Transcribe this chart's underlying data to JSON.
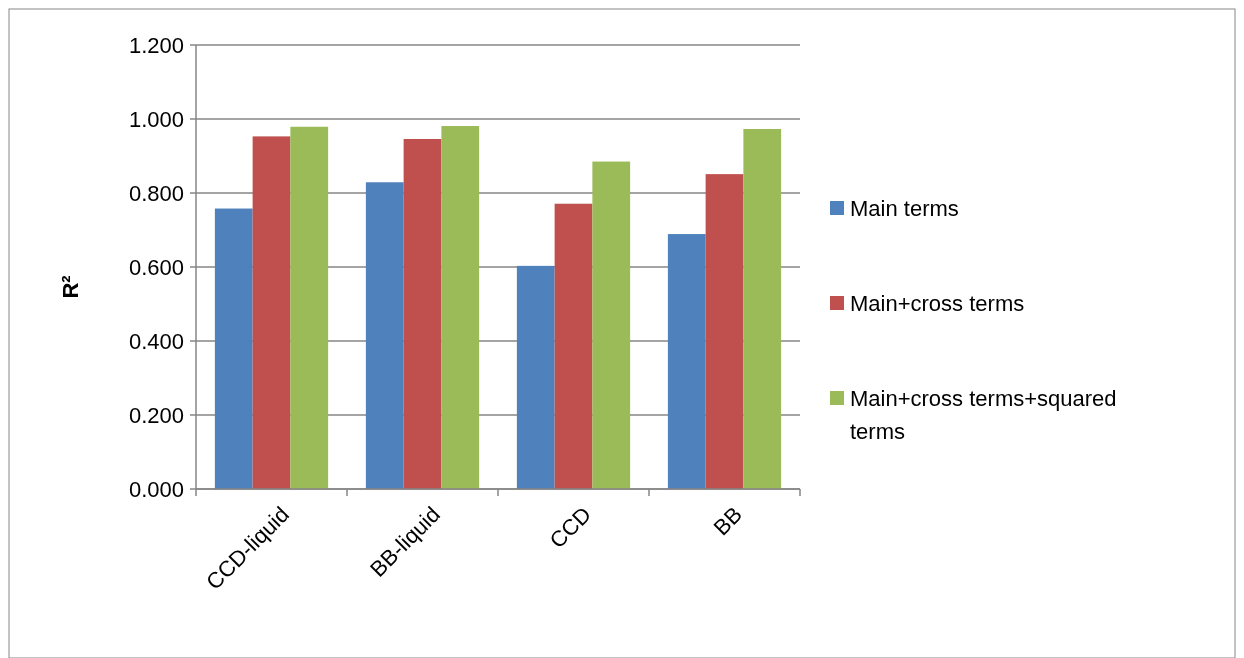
{
  "chart_data": {
    "type": "bar",
    "ylabel": "R²",
    "categories": [
      "CCD-liquid",
      "BB-liquid",
      "CCD",
      "BB"
    ],
    "series": [
      {
        "name": "Main terms",
        "color": "#4f81bd",
        "values": [
          0.758,
          0.829,
          0.603,
          0.689
        ]
      },
      {
        "name": "Main+cross terms",
        "color": "#c0504d",
        "values": [
          0.953,
          0.946,
          0.771,
          0.851
        ]
      },
      {
        "name": "Main+cross terms+squared terms",
        "color": "#9bbb59",
        "values": [
          0.979,
          0.981,
          0.885,
          0.973
        ]
      }
    ],
    "ylim": [
      0,
      1.2
    ],
    "yticks": [
      {
        "value": 0,
        "label": "0.000"
      },
      {
        "value": 0.2,
        "label": "0.200"
      },
      {
        "value": 0.4,
        "label": "0.400"
      },
      {
        "value": 0.6,
        "label": "0.600"
      },
      {
        "value": 0.8,
        "label": "0.800"
      },
      {
        "value": 1,
        "label": "1.000"
      },
      {
        "value": 1.2,
        "label": "1.200"
      }
    ],
    "grid": "y",
    "legend": "right"
  }
}
